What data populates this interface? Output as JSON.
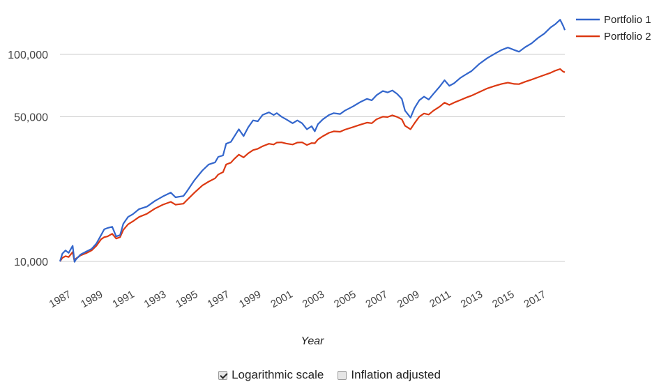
{
  "chart_data": {
    "type": "line",
    "xlabel": "Year",
    "ylabel": "",
    "y_scale": "log",
    "ylim": [
      9500,
      160000
    ],
    "xlim": [
      1987.0,
      2018.9
    ],
    "x_ticks": [
      "1987",
      "1989",
      "1991",
      "1993",
      "1995",
      "1997",
      "1999",
      "2001",
      "2003",
      "2005",
      "2007",
      "2009",
      "2011",
      "2013",
      "2015",
      "2017"
    ],
    "y_ticks": [
      {
        "value": 10000,
        "label": "10,000"
      },
      {
        "value": 50000,
        "label": "50,000"
      },
      {
        "value": 100000,
        "label": "100,000"
      }
    ],
    "grid": true,
    "legend_position": "top-right",
    "series": [
      {
        "name": "Portfolio 1",
        "color": "#3366cc",
        "points": [
          [
            1987.0,
            10000
          ],
          [
            1987.15,
            10900
          ],
          [
            1987.35,
            11300
          ],
          [
            1987.55,
            11000
          ],
          [
            1987.8,
            11900
          ],
          [
            1987.92,
            9950
          ],
          [
            1988.0,
            10200
          ],
          [
            1988.3,
            10800
          ],
          [
            1988.7,
            11200
          ],
          [
            1989.0,
            11500
          ],
          [
            1989.3,
            12200
          ],
          [
            1989.6,
            13400
          ],
          [
            1989.8,
            14300
          ],
          [
            1990.0,
            14500
          ],
          [
            1990.3,
            14700
          ],
          [
            1990.55,
            13200
          ],
          [
            1990.8,
            13400
          ],
          [
            1991.0,
            15200
          ],
          [
            1991.3,
            16400
          ],
          [
            1991.6,
            16900
          ],
          [
            1992.0,
            17900
          ],
          [
            1992.5,
            18400
          ],
          [
            1993.0,
            19600
          ],
          [
            1993.5,
            20600
          ],
          [
            1994.0,
            21500
          ],
          [
            1994.3,
            20400
          ],
          [
            1994.8,
            20700
          ],
          [
            1995.0,
            21700
          ],
          [
            1995.5,
            24700
          ],
          [
            1996.0,
            27500
          ],
          [
            1996.4,
            29400
          ],
          [
            1996.8,
            30100
          ],
          [
            1997.0,
            32000
          ],
          [
            1997.3,
            32500
          ],
          [
            1997.5,
            37000
          ],
          [
            1997.8,
            37800
          ],
          [
            1998.0,
            40000
          ],
          [
            1998.3,
            43500
          ],
          [
            1998.6,
            40300
          ],
          [
            1998.9,
            44500
          ],
          [
            1999.2,
            48000
          ],
          [
            1999.5,
            47500
          ],
          [
            1999.8,
            51000
          ],
          [
            2000.2,
            52500
          ],
          [
            2000.5,
            51000
          ],
          [
            2000.7,
            52000
          ],
          [
            2001.0,
            50000
          ],
          [
            2001.3,
            48500
          ],
          [
            2001.7,
            46500
          ],
          [
            2002.0,
            48000
          ],
          [
            2002.3,
            46500
          ],
          [
            2002.6,
            43500
          ],
          [
            2002.9,
            45000
          ],
          [
            2003.1,
            42500
          ],
          [
            2003.3,
            46000
          ],
          [
            2003.6,
            48500
          ],
          [
            2004.0,
            51000
          ],
          [
            2004.3,
            52000
          ],
          [
            2004.7,
            51500
          ],
          [
            2005.0,
            53500
          ],
          [
            2005.5,
            56000
          ],
          [
            2006.0,
            59000
          ],
          [
            2006.4,
            61000
          ],
          [
            2006.7,
            60000
          ],
          [
            2007.0,
            63500
          ],
          [
            2007.4,
            66500
          ],
          [
            2007.7,
            65500
          ],
          [
            2008.0,
            67000
          ],
          [
            2008.3,
            64500
          ],
          [
            2008.6,
            61000
          ],
          [
            2008.8,
            53500
          ],
          [
            2009.15,
            49500
          ],
          [
            2009.4,
            55000
          ],
          [
            2009.7,
            60000
          ],
          [
            2010.0,
            62500
          ],
          [
            2010.3,
            60500
          ],
          [
            2010.6,
            64500
          ],
          [
            2011.0,
            70000
          ],
          [
            2011.3,
            75000
          ],
          [
            2011.6,
            70500
          ],
          [
            2011.9,
            72500
          ],
          [
            2012.3,
            77000
          ],
          [
            2012.7,
            80500
          ],
          [
            2013.0,
            83000
          ],
          [
            2013.5,
            90000
          ],
          [
            2014.0,
            96000
          ],
          [
            2014.5,
            101000
          ],
          [
            2014.9,
            105000
          ],
          [
            2015.3,
            108000
          ],
          [
            2015.7,
            105000
          ],
          [
            2016.0,
            103000
          ],
          [
            2016.4,
            108500
          ],
          [
            2016.8,
            113000
          ],
          [
            2017.2,
            120000
          ],
          [
            2017.6,
            126000
          ],
          [
            2018.0,
            135000
          ],
          [
            2018.3,
            140000
          ],
          [
            2018.6,
            147000
          ],
          [
            2018.8,
            137000
          ],
          [
            2018.9,
            131000
          ]
        ]
      },
      {
        "name": "Portfolio 2",
        "color": "#dc3912",
        "points": [
          [
            1987.0,
            10000
          ],
          [
            1987.15,
            10400
          ],
          [
            1987.35,
            10600
          ],
          [
            1987.55,
            10500
          ],
          [
            1987.8,
            11100
          ],
          [
            1987.92,
            10000
          ],
          [
            1988.0,
            10300
          ],
          [
            1988.3,
            10700
          ],
          [
            1988.7,
            11000
          ],
          [
            1989.0,
            11300
          ],
          [
            1989.3,
            11900
          ],
          [
            1989.6,
            12800
          ],
          [
            1989.8,
            13100
          ],
          [
            1990.0,
            13200
          ],
          [
            1990.3,
            13600
          ],
          [
            1990.55,
            12900
          ],
          [
            1990.8,
            13100
          ],
          [
            1991.0,
            14200
          ],
          [
            1991.3,
            15100
          ],
          [
            1991.6,
            15600
          ],
          [
            1992.0,
            16400
          ],
          [
            1992.5,
            17000
          ],
          [
            1993.0,
            18000
          ],
          [
            1993.5,
            18800
          ],
          [
            1994.0,
            19400
          ],
          [
            1994.3,
            18800
          ],
          [
            1994.8,
            19000
          ],
          [
            1995.0,
            19700
          ],
          [
            1995.5,
            21500
          ],
          [
            1996.0,
            23300
          ],
          [
            1996.4,
            24300
          ],
          [
            1996.8,
            25200
          ],
          [
            1997.0,
            26300
          ],
          [
            1997.3,
            27000
          ],
          [
            1997.5,
            29400
          ],
          [
            1997.8,
            30000
          ],
          [
            1998.0,
            31200
          ],
          [
            1998.3,
            32800
          ],
          [
            1998.6,
            31800
          ],
          [
            1998.9,
            33300
          ],
          [
            1999.2,
            34500
          ],
          [
            1999.5,
            35000
          ],
          [
            1999.8,
            36000
          ],
          [
            2000.2,
            37000
          ],
          [
            2000.5,
            36700
          ],
          [
            2000.7,
            37500
          ],
          [
            2001.0,
            37600
          ],
          [
            2001.3,
            37100
          ],
          [
            2001.7,
            36700
          ],
          [
            2002.0,
            37500
          ],
          [
            2002.3,
            37600
          ],
          [
            2002.6,
            36500
          ],
          [
            2002.9,
            37300
          ],
          [
            2003.1,
            37200
          ],
          [
            2003.3,
            38800
          ],
          [
            2003.6,
            40200
          ],
          [
            2004.0,
            41800
          ],
          [
            2004.3,
            42500
          ],
          [
            2004.7,
            42300
          ],
          [
            2005.0,
            43300
          ],
          [
            2005.5,
            44500
          ],
          [
            2006.0,
            45800
          ],
          [
            2006.4,
            46800
          ],
          [
            2006.7,
            46500
          ],
          [
            2007.0,
            48600
          ],
          [
            2007.4,
            50000
          ],
          [
            2007.7,
            49800
          ],
          [
            2008.0,
            50800
          ],
          [
            2008.3,
            49900
          ],
          [
            2008.6,
            48600
          ],
          [
            2008.8,
            45200
          ],
          [
            2009.15,
            43500
          ],
          [
            2009.4,
            46500
          ],
          [
            2009.7,
            50000
          ],
          [
            2010.0,
            51800
          ],
          [
            2010.3,
            51200
          ],
          [
            2010.6,
            53500
          ],
          [
            2011.0,
            56000
          ],
          [
            2011.3,
            58500
          ],
          [
            2011.6,
            57000
          ],
          [
            2011.9,
            58500
          ],
          [
            2012.3,
            60200
          ],
          [
            2012.7,
            62000
          ],
          [
            2013.0,
            63200
          ],
          [
            2013.5,
            65800
          ],
          [
            2014.0,
            68500
          ],
          [
            2014.5,
            70500
          ],
          [
            2014.9,
            72000
          ],
          [
            2015.3,
            73000
          ],
          [
            2015.7,
            72000
          ],
          [
            2016.0,
            71800
          ],
          [
            2016.4,
            73800
          ],
          [
            2016.8,
            75500
          ],
          [
            2017.2,
            77500
          ],
          [
            2017.6,
            79500
          ],
          [
            2018.0,
            81500
          ],
          [
            2018.3,
            83500
          ],
          [
            2018.6,
            85000
          ],
          [
            2018.8,
            82500
          ],
          [
            2018.9,
            82000
          ]
        ]
      }
    ]
  },
  "controls": {
    "log_scale": {
      "label": "Logarithmic scale",
      "checked": true
    },
    "inflation": {
      "label": "Inflation adjusted",
      "checked": false
    }
  }
}
